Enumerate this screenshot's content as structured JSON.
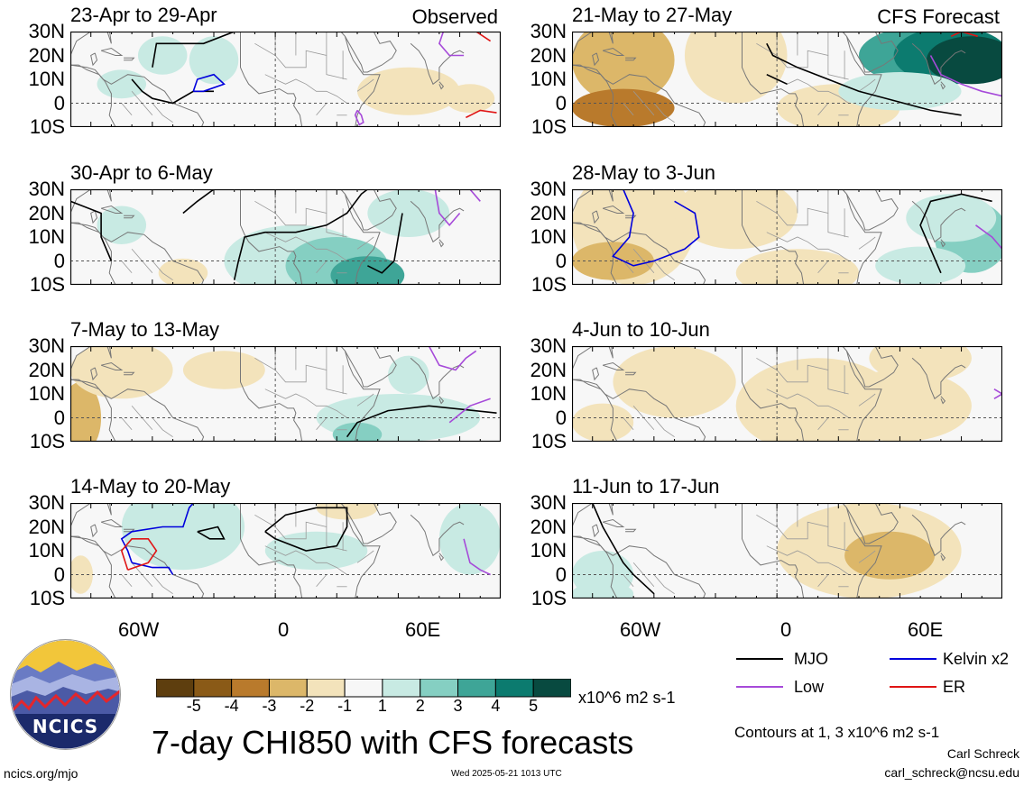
{
  "panels": [
    {
      "title": "23-Apr to 29-Apr",
      "tag": "Observed"
    },
    {
      "title": "30-Apr to 6-May",
      "tag": ""
    },
    {
      "title": "7-May to 13-May",
      "tag": ""
    },
    {
      "title": "14-May to 20-May",
      "tag": ""
    },
    {
      "title": "21-May to 27-May",
      "tag": "CFS Forecast"
    },
    {
      "title": "28-May to 3-Jun",
      "tag": ""
    },
    {
      "title": "4-Jun to 10-Jun",
      "tag": ""
    },
    {
      "title": "11-Jun to 17-Jun",
      "tag": ""
    }
  ],
  "lat_labels": [
    "30N",
    "20N",
    "10N",
    "0",
    "10S"
  ],
  "lon_labels": [
    "60W",
    "0",
    "60E"
  ],
  "colorbar": {
    "ticks": [
      "-5",
      "-4",
      "-3",
      "-2",
      "-1",
      "1",
      "2",
      "3",
      "4",
      "5"
    ],
    "colors": [
      "#5e3e0e",
      "#8a5a17",
      "#b97a2c",
      "#dcb769",
      "#f3e3bb",
      "#f7f7f7",
      "#c8eae3",
      "#85cfc2",
      "#3ea597",
      "#0c7b6f",
      "#084a40"
    ],
    "units": "x10^6 m2 s-1"
  },
  "legend": [
    {
      "label": "MJO",
      "color": "#000000"
    },
    {
      "label": "Kelvin x2",
      "color": "#0000dd"
    },
    {
      "label": "Low",
      "color": "#a64ad9"
    },
    {
      "label": "ER",
      "color": "#e01515"
    }
  ],
  "contour_note": "Contours at 1, 3 x10^6 m2 s-1",
  "title": "7-day CHI850 with CFS forecasts",
  "author": "Carl Schreck",
  "email": "carl_schreck@ncsu.edu",
  "site": "ncics.org/mjo",
  "timestamp": "Wed 2025-05-21 1013 UTC",
  "logo_text": "NCICS"
}
